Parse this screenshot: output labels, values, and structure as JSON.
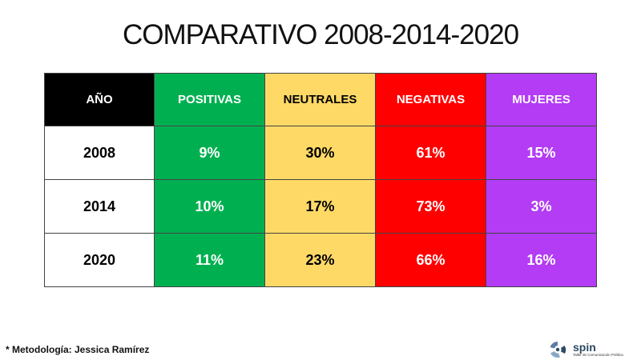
{
  "title": "COMPARATIVO 2008-2014-2020",
  "table": {
    "headers": [
      "AÑO",
      "POSITIVAS",
      "NEUTRALES",
      "NEGATIVAS",
      "MUJERES"
    ],
    "rows": [
      [
        "2008",
        "9%",
        "30%",
        "61%",
        "15%"
      ],
      [
        "2014",
        "10%",
        "17%",
        "73%",
        "3%"
      ],
      [
        "2020",
        "11%",
        "23%",
        "66%",
        "16%"
      ]
    ]
  },
  "colors": {
    "year_header": "#000000",
    "positivas": "#00b050",
    "neutrales": "#ffd966",
    "negativas": "#ff0000",
    "mujeres": "#b33cf4"
  },
  "footer": {
    "methodology": "* Metodología: Jessica Ramírez"
  },
  "logo": {
    "icon": "spin-logo-icon",
    "word": "spin",
    "tagline": "Taller de Comunicación Política"
  }
}
